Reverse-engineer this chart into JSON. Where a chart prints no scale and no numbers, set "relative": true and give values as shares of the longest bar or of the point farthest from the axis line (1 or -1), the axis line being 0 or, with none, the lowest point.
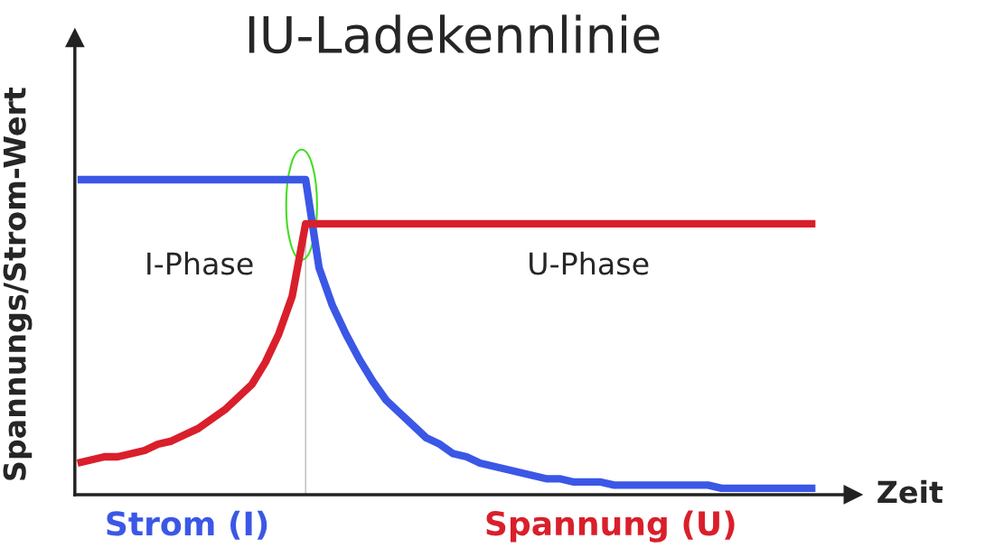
{
  "chart_data": {
    "type": "line",
    "title": "IU-Ladekennlinie",
    "xlabel": "Zeit",
    "ylabel": "Spannungs/Strom-Wert",
    "relative": true,
    "categories": [
      null,
      null,
      null,
      null,
      null,
      null,
      null,
      null,
      null,
      null,
      null,
      null,
      null,
      null,
      null,
      null,
      null,
      null,
      null,
      null,
      null,
      null,
      null,
      null,
      null,
      null,
      null,
      null,
      null,
      null,
      null,
      null,
      null,
      null,
      null,
      null,
      null,
      null,
      null,
      null,
      null,
      null,
      null,
      null,
      null,
      null,
      null,
      null,
      null,
      null,
      null,
      null,
      null,
      null,
      null,
      null
    ],
    "series": [
      {
        "name": "Strom (I)",
        "color": "#3b57e6",
        "values": [
          1,
          1,
          1,
          1,
          1,
          1,
          1,
          1,
          1,
          1,
          1,
          1,
          1,
          1,
          1,
          1,
          1,
          1,
          0.72,
          0.6,
          0.51,
          0.43,
          0.36,
          0.3,
          0.26,
          0.22,
          0.18,
          0.16,
          0.13,
          0.12,
          0.1,
          0.09,
          0.08,
          0.07,
          0.06,
          0.05,
          0.05,
          0.04,
          0.04,
          0.04,
          0.03,
          0.03,
          0.03,
          0.03,
          0.03,
          0.03,
          0.03,
          0.03,
          0.02,
          0.02,
          0.02,
          0.02,
          0.02,
          0.02,
          0.02,
          0.02
        ]
      },
      {
        "name": "Spannung (U)",
        "color": "#d91f2b",
        "values": [
          0.1,
          0.11,
          0.12,
          0.12,
          0.13,
          0.14,
          0.16,
          0.17,
          0.19,
          0.21,
          0.24,
          0.27,
          0.31,
          0.35,
          0.42,
          0.51,
          0.63,
          0.86,
          0.86,
          0.86,
          0.86,
          0.86,
          0.86,
          0.86,
          0.86,
          0.86,
          0.86,
          0.86,
          0.86,
          0.86,
          0.86,
          0.86,
          0.86,
          0.86,
          0.86,
          0.86,
          0.86,
          0.86,
          0.86,
          0.86,
          0.86,
          0.86,
          0.86,
          0.86,
          0.86,
          0.86,
          0.86,
          0.86,
          0.86,
          0.86,
          0.86,
          0.86,
          0.86,
          0.86,
          0.86,
          0.86
        ]
      }
    ],
    "annotations": [
      "I-Phase",
      "U-Phase"
    ],
    "legend": "bottom",
    "marker": "none",
    "line_style": "solid"
  }
}
